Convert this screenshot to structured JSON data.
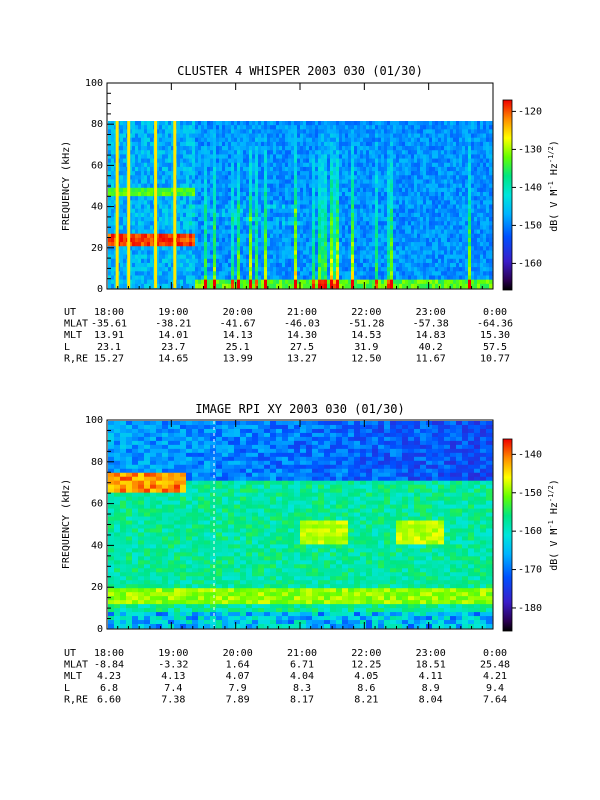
{
  "chart_data": [
    {
      "type": "heatmap",
      "title": "CLUSTER 4 WHISPER 2003 030 (01/30)",
      "ylabel": "FREQUENCY (kHz)",
      "ylim": [
        0,
        100
      ],
      "y_ticks": [
        0,
        20,
        40,
        60,
        80,
        100
      ],
      "x_ticks": [
        "18:00",
        "19:00",
        "20:00",
        "21:00",
        "22:00",
        "23:00",
        "0:00"
      ],
      "data_top_khz": 80,
      "colorbar": {
        "label_parts": [
          "dB( V M",
          "-1",
          " Hz",
          "-1/2",
          ")"
        ],
        "range": [
          -167,
          -117
        ],
        "ticks": [
          -120,
          -130,
          -140,
          -150,
          -160
        ]
      },
      "ephemeris": [
        {
          "label": "UT",
          "values": [
            "18:00",
            "19:00",
            "20:00",
            "21:00",
            "22:00",
            "23:00",
            "0:00"
          ]
        },
        {
          "label": "MLAT",
          "values": [
            "-35.61",
            "-38.21",
            "-41.67",
            "-46.03",
            "-51.28",
            "-57.38",
            "-64.36"
          ]
        },
        {
          "label": "MLT",
          "values": [
            "13.91",
            "14.01",
            "14.13",
            "14.30",
            "14.53",
            "14.83",
            "15.30"
          ]
        },
        {
          "label": "L",
          "values": [
            "23.1",
            "23.7",
            "25.1",
            "27.5",
            "31.9",
            "40.2",
            "57.5"
          ]
        },
        {
          "label": "R,RE",
          "values": [
            "15.27",
            "14.65",
            "13.99",
            "13.27",
            "12.50",
            "11.67",
            "10.77"
          ]
        }
      ]
    },
    {
      "type": "heatmap",
      "title": "IMAGE RPI XY 2003 030 (01/30)",
      "ylabel": "FREQUENCY (kHz)",
      "ylim": [
        0,
        100
      ],
      "y_ticks": [
        0,
        20,
        40,
        60,
        80,
        100
      ],
      "x_ticks": [
        "18:00",
        "19:00",
        "20:00",
        "21:00",
        "22:00",
        "23:00",
        "0:00"
      ],
      "colorbar": {
        "label_parts": [
          "dB( V M",
          "-1",
          " Hz",
          "-1/2",
          ")"
        ],
        "range": [
          -186,
          -136
        ],
        "ticks": [
          -140,
          -150,
          -160,
          -170,
          -180
        ]
      },
      "ephemeris": [
        {
          "label": "UT",
          "values": [
            "18:00",
            "19:00",
            "20:00",
            "21:00",
            "22:00",
            "23:00",
            "0:00"
          ]
        },
        {
          "label": "MLAT",
          "values": [
            "-8.84",
            "-3.32",
            "1.64",
            "6.71",
            "12.25",
            "18.51",
            "25.48"
          ]
        },
        {
          "label": "MLT",
          "values": [
            "4.23",
            "4.13",
            "4.07",
            "4.04",
            "4.05",
            "4.11",
            "4.21"
          ]
        },
        {
          "label": "L",
          "values": [
            "6.8",
            "7.4",
            "7.9",
            "8.3",
            "8.6",
            "8.9",
            "9.4"
          ]
        },
        {
          "label": "R,RE",
          "values": [
            "6.60",
            "7.38",
            "7.89",
            "8.17",
            "8.21",
            "8.04",
            "7.64"
          ]
        }
      ]
    }
  ]
}
